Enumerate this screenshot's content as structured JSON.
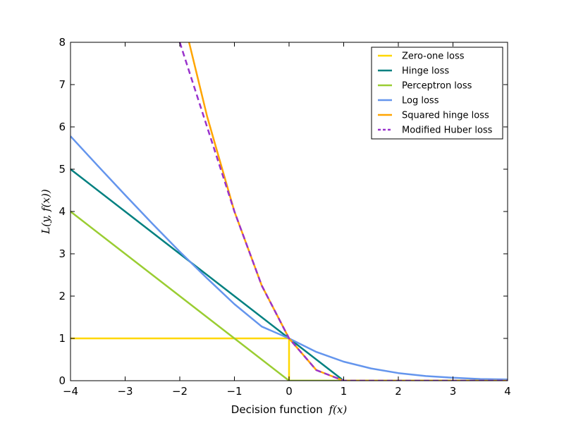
{
  "chart_data": {
    "type": "line",
    "title": "",
    "xlabel": "Decision function",
    "xlabel_math": "f(x)",
    "ylabel": "L(y, f(x))",
    "xlim": [
      -4,
      4
    ],
    "ylim": [
      0,
      8
    ],
    "xticks": [
      -4,
      -3,
      -2,
      -1,
      0,
      1,
      2,
      3,
      4
    ],
    "xtick_labels": [
      "−4",
      "−3",
      "−2",
      "−1",
      "0",
      "1",
      "2",
      "3",
      "4"
    ],
    "yticks": [
      0,
      1,
      2,
      3,
      4,
      5,
      6,
      7,
      8
    ],
    "ytick_labels": [
      "0",
      "1",
      "2",
      "3",
      "4",
      "5",
      "6",
      "7",
      "8"
    ],
    "grid": false,
    "legend_position": "top-right",
    "series": [
      {
        "name": "Zero-one loss",
        "color": "#FFD700",
        "style": "solid",
        "x": [
          -4,
          0,
          0,
          4
        ],
        "y": [
          1,
          1,
          0,
          0
        ]
      },
      {
        "name": "Hinge loss",
        "color": "#008080",
        "style": "solid",
        "x": [
          -4,
          -3,
          -2,
          -1,
          0,
          1,
          2,
          3,
          4
        ],
        "y": [
          5,
          4,
          3,
          2,
          1,
          0,
          0,
          0,
          0
        ]
      },
      {
        "name": "Perceptron loss",
        "color": "#9ACD32",
        "style": "solid",
        "x": [
          -4,
          -3,
          -2,
          -1,
          0,
          1,
          2,
          3,
          4
        ],
        "y": [
          4,
          3,
          2,
          1,
          0,
          0,
          0,
          0,
          0
        ]
      },
      {
        "name": "Log loss",
        "color": "#6495ED",
        "style": "solid",
        "x": [
          -4,
          -3.5,
          -3,
          -2.5,
          -2,
          -1.5,
          -1,
          -0.5,
          0,
          0.5,
          1,
          1.5,
          2,
          2.5,
          3,
          3.5,
          4
        ],
        "y": [
          5.78,
          5.08,
          4.39,
          3.71,
          3.05,
          2.42,
          1.81,
          1.28,
          1.0,
          0.68,
          0.45,
          0.29,
          0.18,
          0.11,
          0.07,
          0.04,
          0.03
        ]
      },
      {
        "name": "Squared hinge loss",
        "color": "#FFA500",
        "style": "solid",
        "x": [
          -1.83,
          -1.5,
          -1.0,
          -0.5,
          0.0,
          0.5,
          1.0,
          2.0,
          3.0,
          4.0
        ],
        "y": [
          8.0,
          6.25,
          4.0,
          2.25,
          1.0,
          0.25,
          0.0,
          0.0,
          0.0,
          0.0
        ]
      },
      {
        "name": "Modified Huber loss",
        "color": "#9932CC",
        "style": "dashed",
        "x": [
          -2.0,
          -1.5,
          -1.0,
          -0.5,
          0.0,
          0.5,
          1.0,
          2.0,
          3.0,
          4.0
        ],
        "y": [
          8.0,
          6.0,
          4.0,
          2.25,
          1.0,
          0.25,
          0.0,
          0.0,
          0.0,
          0.0
        ]
      }
    ]
  }
}
